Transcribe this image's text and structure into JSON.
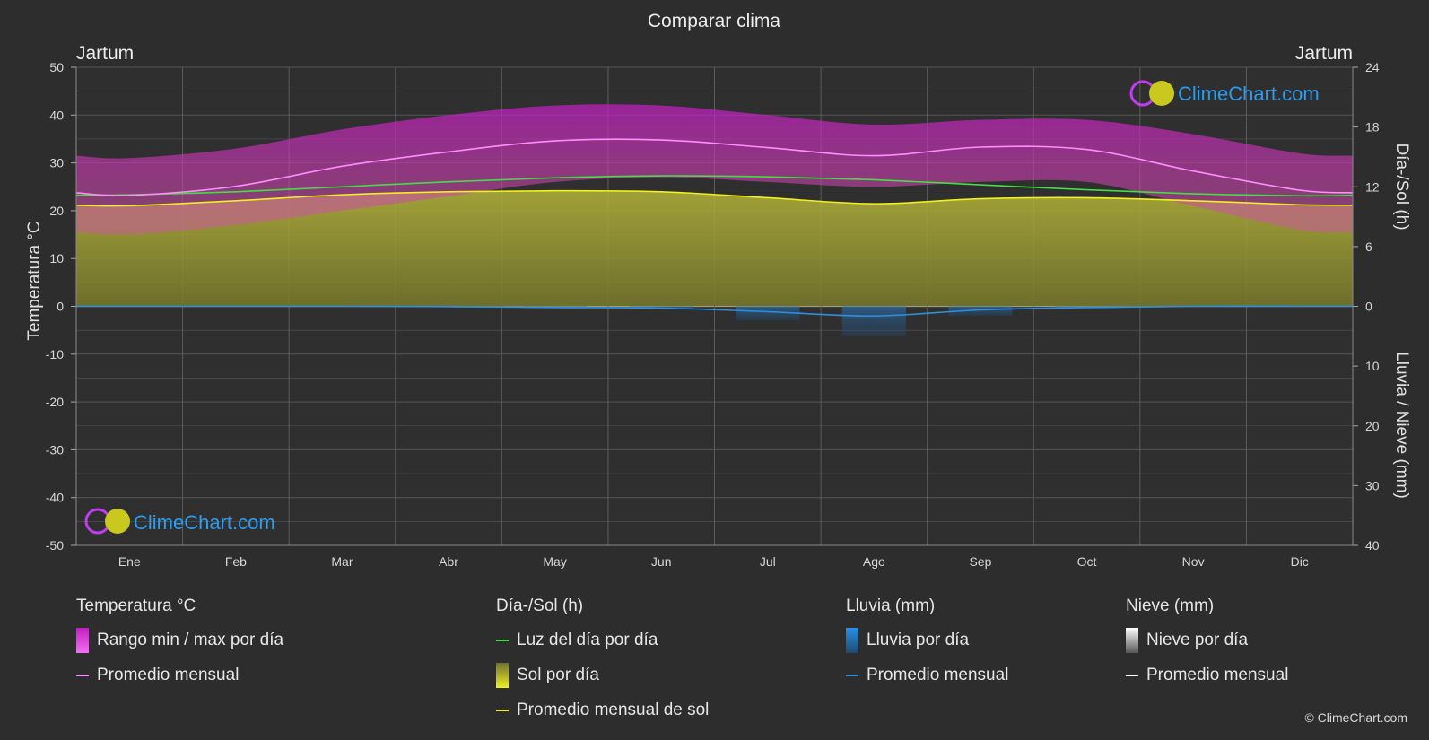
{
  "title": "Comparar clima",
  "location_left": "Jartum",
  "location_right": "Jartum",
  "watermark": "ClimeChart.com",
  "copyright": "© ClimeChart.com",
  "axes": {
    "left_label": "Temperatura °C",
    "right_top_label": "Día-/Sol (h)",
    "right_bottom_label": "Lluvia / Nieve (mm)",
    "left_ticks": [
      50,
      40,
      30,
      20,
      10,
      0,
      -10,
      -20,
      -30,
      -40,
      -50
    ],
    "right_top_ticks": [
      24,
      18,
      12,
      6,
      0
    ],
    "right_bottom_ticks": [
      10,
      20,
      30,
      40
    ]
  },
  "colors": {
    "background": "#2d2d2d",
    "temp_range": "#d81ed8",
    "temp_avg": "#ff8cff",
    "daylight": "#44dd44",
    "sunshine": "#9a9a30",
    "sunshine_avg": "#f0f020",
    "rain": "#2a7fc9",
    "rain_avg": "#2f8ee0",
    "snow": "#ffffff",
    "watermark": "#2a9df0"
  },
  "chart_data": {
    "type": "area",
    "x_label": "",
    "months": [
      "Ene",
      "Feb",
      "Mar",
      "Abr",
      "May",
      "Jun",
      "Jul",
      "Ago",
      "Sep",
      "Oct",
      "Nov",
      "Dic"
    ],
    "ylim_temperature": [
      -50,
      50
    ],
    "ylim_sun_hours": [
      0,
      24
    ],
    "ylim_precip_mm": [
      0,
      40
    ],
    "series": [
      {
        "name": "Rango min / max por día (max)",
        "axis": "temperature",
        "values": [
          31,
          33,
          37,
          40,
          42,
          42,
          40,
          38,
          39,
          39,
          36,
          32
        ]
      },
      {
        "name": "Rango min / max por día (min)",
        "axis": "temperature",
        "values": [
          15,
          17,
          20,
          23,
          26,
          27,
          26,
          25,
          26,
          26,
          21,
          16
        ]
      },
      {
        "name": "Promedio mensual",
        "axis": "temperature",
        "values": [
          23.2,
          25.1,
          29.3,
          32.3,
          34.6,
          34.8,
          33.2,
          31.5,
          33.3,
          32.8,
          28.3,
          24.3
        ]
      },
      {
        "name": "Luz del día por día",
        "axis": "sun_hours",
        "values": [
          11.2,
          11.5,
          12.0,
          12.5,
          12.9,
          13.1,
          13.0,
          12.7,
          12.2,
          11.7,
          11.3,
          11.1
        ]
      },
      {
        "name": "Sol por día",
        "axis": "sun_hours",
        "values": [
          10.1,
          10.6,
          11.2,
          11.5,
          11.6,
          11.5,
          10.9,
          10.3,
          10.8,
          10.9,
          10.6,
          10.2
        ]
      },
      {
        "name": "Promedio mensual de sol",
        "axis": "sun_hours",
        "values": [
          10.1,
          10.6,
          11.2,
          11.5,
          11.6,
          11.5,
          10.9,
          10.3,
          10.8,
          10.9,
          10.6,
          10.2
        ]
      },
      {
        "name": "Lluvia por día",
        "axis": "precip_mm",
        "values": [
          0,
          0,
          0,
          0.1,
          0.4,
          0.5,
          2.4,
          5.0,
          1.6,
          0.5,
          0,
          0
        ]
      },
      {
        "name": "Promedio mensual",
        "axis": "precip_mm",
        "values": [
          0,
          0,
          0,
          0.05,
          0.2,
          0.3,
          0.9,
          1.6,
          0.6,
          0.2,
          0,
          0
        ]
      },
      {
        "name": "Nieve por día",
        "axis": "precip_mm",
        "values": [
          0,
          0,
          0,
          0,
          0,
          0,
          0,
          0,
          0,
          0,
          0,
          0
        ]
      },
      {
        "name": "Promedio mensual",
        "axis": "precip_mm",
        "values": [
          0,
          0,
          0,
          0,
          0,
          0,
          0,
          0,
          0,
          0,
          0,
          0
        ]
      }
    ]
  },
  "legend": {
    "temperature": {
      "title": "Temperatura °C",
      "items": [
        {
          "label": "Rango min / max por día",
          "kind": "box",
          "color": "#dd22dd"
        },
        {
          "label": "Promedio mensual",
          "kind": "line",
          "color": "#ff8cff"
        }
      ]
    },
    "sun": {
      "title": "Día-/Sol (h)",
      "items": [
        {
          "label": "Luz del día por día",
          "kind": "line",
          "color": "#44dd44"
        },
        {
          "label": "Sol por día",
          "kind": "box",
          "color": "#d8d82a"
        },
        {
          "label": "Promedio mensual de sol",
          "kind": "line",
          "color": "#f0f020"
        }
      ]
    },
    "rain": {
      "title": "Lluvia (mm)",
      "items": [
        {
          "label": "Lluvia por día",
          "kind": "box",
          "color": "#2a7fc9"
        },
        {
          "label": "Promedio mensual",
          "kind": "line",
          "color": "#2f8ee0"
        }
      ]
    },
    "snow": {
      "title": "Nieve (mm)",
      "items": [
        {
          "label": "Nieve por día",
          "kind": "box",
          "color": "#dddddd"
        },
        {
          "label": "Promedio mensual",
          "kind": "line",
          "color": "#ffffff"
        }
      ]
    }
  }
}
